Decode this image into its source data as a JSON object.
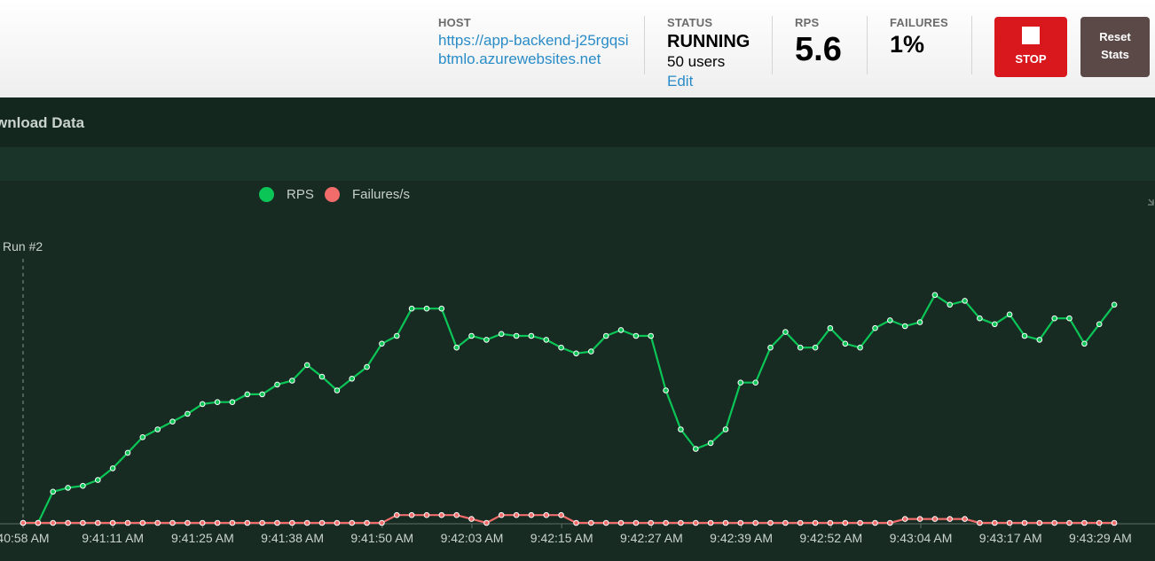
{
  "header": {
    "host": {
      "label": "HOST",
      "url": "https://app-backend-j25rgqsibtmlo.azurewebsites.net"
    },
    "status": {
      "label": "STATUS",
      "value": "RUNNING",
      "users": "50 users",
      "edit": "Edit"
    },
    "rps": {
      "label": "RPS",
      "value": "5.6"
    },
    "failures": {
      "label": "FAILURES",
      "value": "1%"
    },
    "stop_label": "STOP",
    "reset_label_1": "Reset",
    "reset_label_2": "Stats"
  },
  "panel": {
    "title": "wnload Data"
  },
  "legend": [
    {
      "name": "RPS",
      "color": "#0bc657"
    },
    {
      "name": "Failures/s",
      "color": "#f26c6b"
    }
  ],
  "chart_data": {
    "type": "line",
    "annotation": "Run #2",
    "x_tick_labels": [
      "40:58 AM",
      "9:41:11 AM",
      "9:41:25 AM",
      "9:41:38 AM",
      "9:41:50 AM",
      "9:42:03 AM",
      "9:42:15 AM",
      "9:42:27 AM",
      "9:42:39 AM",
      "9:42:52 AM",
      "9:43:04 AM",
      "9:43:17 AM",
      "9:43:29 AM"
    ],
    "ylim": [
      0,
      7
    ],
    "series": [
      {
        "name": "RPS",
        "color": "#0bc657",
        "values": [
          0,
          0,
          0.8,
          0.9,
          0.95,
          1.1,
          1.4,
          1.8,
          2.2,
          2.4,
          2.6,
          2.8,
          3.05,
          3.1,
          3.1,
          3.3,
          3.3,
          3.55,
          3.65,
          4.05,
          3.75,
          3.4,
          3.7,
          4.0,
          4.6,
          4.8,
          5.5,
          5.5,
          5.5,
          4.5,
          4.8,
          4.7,
          4.85,
          4.8,
          4.8,
          4.7,
          4.5,
          4.35,
          4.4,
          4.8,
          4.95,
          4.8,
          4.8,
          3.4,
          2.4,
          1.9,
          2.05,
          2.4,
          3.6,
          3.6,
          4.5,
          4.9,
          4.5,
          4.5,
          5.0,
          4.6,
          4.5,
          5.0,
          5.2,
          5.05,
          5.15,
          5.85,
          5.6,
          5.7,
          5.25,
          5.1,
          5.35,
          4.8,
          4.7,
          5.25,
          5.25,
          4.6,
          5.1,
          5.6
        ]
      },
      {
        "name": "Failures/s",
        "color": "#f26c6b",
        "values": [
          0,
          0,
          0,
          0,
          0,
          0,
          0,
          0,
          0,
          0,
          0,
          0,
          0,
          0,
          0,
          0,
          0,
          0,
          0,
          0,
          0,
          0,
          0,
          0,
          0,
          0.2,
          0.2,
          0.2,
          0.2,
          0.2,
          0.1,
          0,
          0.2,
          0.2,
          0.2,
          0.2,
          0.2,
          0,
          0,
          0,
          0,
          0,
          0,
          0,
          0,
          0,
          0,
          0,
          0,
          0,
          0,
          0,
          0,
          0,
          0,
          0,
          0,
          0,
          0,
          0.1,
          0.1,
          0.1,
          0.1,
          0.1,
          0,
          0,
          0,
          0,
          0,
          0,
          0,
          0,
          0,
          0
        ]
      }
    ]
  }
}
